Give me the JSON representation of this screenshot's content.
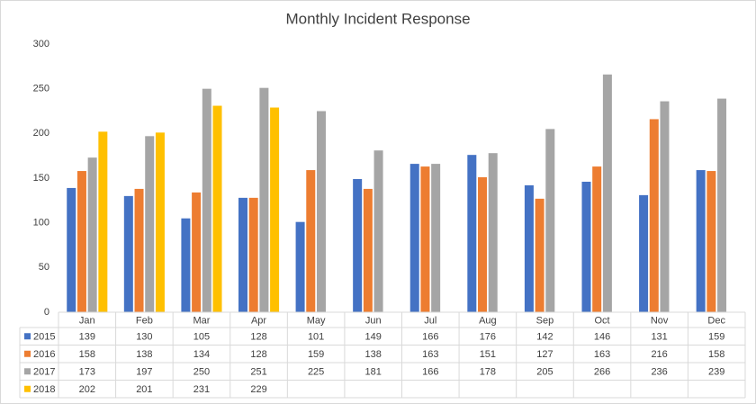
{
  "chart_data": {
    "type": "bar",
    "title": "Monthly Incident Response",
    "categories": [
      "Jan",
      "Feb",
      "Mar",
      "Apr",
      "May",
      "Jun",
      "Jul",
      "Aug",
      "Sep",
      "Oct",
      "Nov",
      "Dec"
    ],
    "series": [
      {
        "name": "2015",
        "color": "#4472c4",
        "values": [
          139,
          130,
          105,
          128,
          101,
          149,
          166,
          176,
          142,
          146,
          131,
          159
        ]
      },
      {
        "name": "2016",
        "color": "#ed7d31",
        "values": [
          158,
          138,
          134,
          128,
          159,
          138,
          163,
          151,
          127,
          163,
          216,
          158
        ]
      },
      {
        "name": "2017",
        "color": "#a5a5a5",
        "values": [
          173,
          197,
          250,
          251,
          225,
          181,
          166,
          178,
          205,
          266,
          236,
          239
        ]
      },
      {
        "name": "2018",
        "color": "#ffc000",
        "values": [
          202,
          201,
          231,
          229,
          null,
          null,
          null,
          null,
          null,
          null,
          null,
          null
        ]
      }
    ],
    "ylim": [
      0,
      300
    ],
    "yticks": [
      0,
      50,
      100,
      150,
      200,
      250,
      300
    ],
    "grid": false,
    "data_table": true
  }
}
